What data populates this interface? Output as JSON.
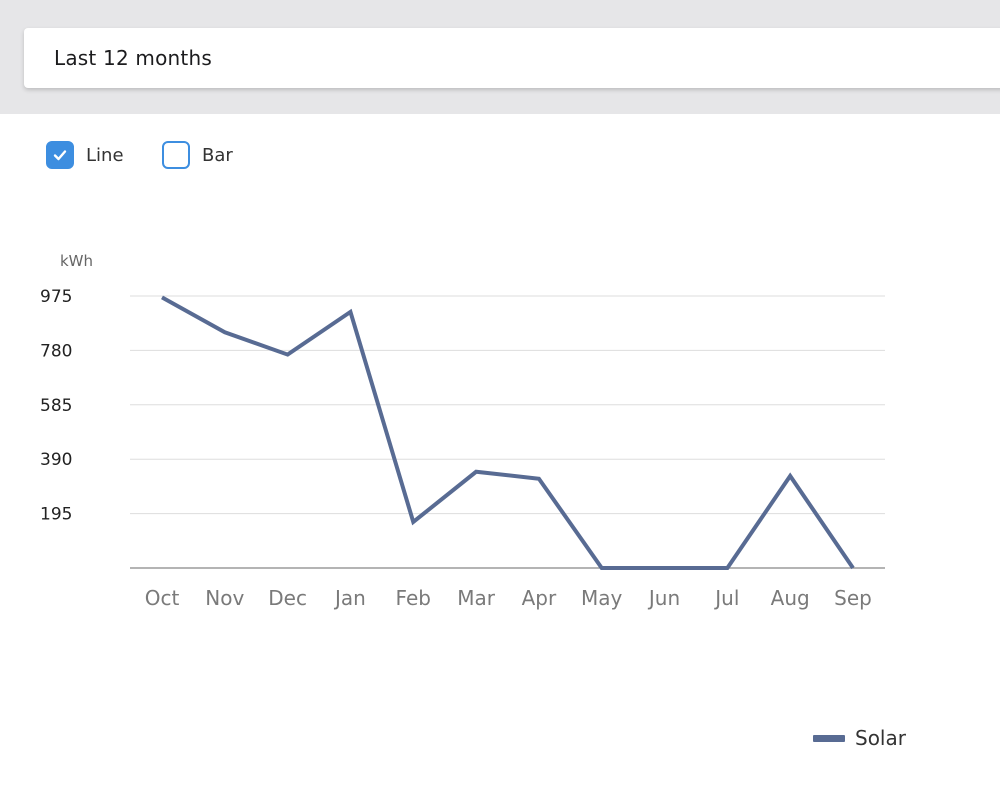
{
  "range_select": {
    "label": "Last 12 months"
  },
  "toggles": {
    "line": {
      "label": "Line",
      "checked": true
    },
    "bar": {
      "label": "Bar",
      "checked": false
    }
  },
  "colors": {
    "accent": "#3d8ee0",
    "series": "#586b93",
    "grid": "#dddddd",
    "axis": "#888888",
    "tick_text": "#7a7a7a",
    "ytick_text": "#222222"
  },
  "chart_data": {
    "type": "line",
    "title": "",
    "xlabel": "",
    "ylabel": "kWh",
    "categories": [
      "Oct",
      "Nov",
      "Dec",
      "Jan",
      "Feb",
      "Mar",
      "Apr",
      "May",
      "Jun",
      "Jul",
      "Aug",
      "Sep"
    ],
    "yticks": [
      195,
      390,
      585,
      780,
      975
    ],
    "ylim": [
      0,
      975
    ],
    "grid": true,
    "legend_position": "bottom-right",
    "series": [
      {
        "name": "Solar",
        "values": [
          970,
          845,
          765,
          918,
          165,
          345,
          320,
          0,
          0,
          0,
          330,
          0
        ]
      }
    ]
  }
}
